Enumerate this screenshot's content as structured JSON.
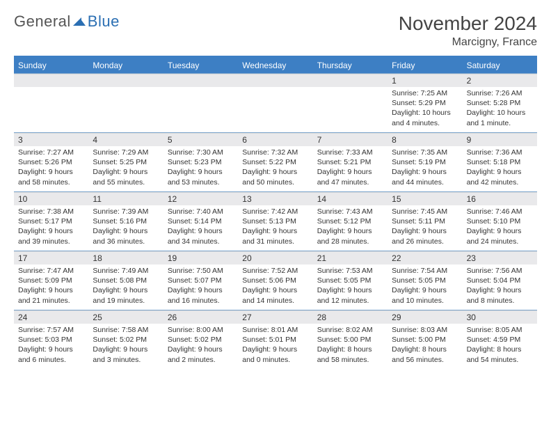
{
  "brand": {
    "part1": "General",
    "part2": "Blue"
  },
  "title": {
    "monthYear": "November 2024",
    "location": "Marcigny, France"
  },
  "colors": {
    "primary": "#3d7fc4",
    "rowBorder": "#7aa3cc",
    "dayStrip": "#e9e9eb",
    "text": "#333333"
  },
  "daysOfWeek": [
    "Sunday",
    "Monday",
    "Tuesday",
    "Wednesday",
    "Thursday",
    "Friday",
    "Saturday"
  ],
  "weeks": [
    [
      null,
      null,
      null,
      null,
      null,
      {
        "n": "1",
        "sr": "Sunrise: 7:25 AM",
        "ss": "Sunset: 5:29 PM",
        "dl": "Daylight: 10 hours and 4 minutes."
      },
      {
        "n": "2",
        "sr": "Sunrise: 7:26 AM",
        "ss": "Sunset: 5:28 PM",
        "dl": "Daylight: 10 hours and 1 minute."
      }
    ],
    [
      {
        "n": "3",
        "sr": "Sunrise: 7:27 AM",
        "ss": "Sunset: 5:26 PM",
        "dl": "Daylight: 9 hours and 58 minutes."
      },
      {
        "n": "4",
        "sr": "Sunrise: 7:29 AM",
        "ss": "Sunset: 5:25 PM",
        "dl": "Daylight: 9 hours and 55 minutes."
      },
      {
        "n": "5",
        "sr": "Sunrise: 7:30 AM",
        "ss": "Sunset: 5:23 PM",
        "dl": "Daylight: 9 hours and 53 minutes."
      },
      {
        "n": "6",
        "sr": "Sunrise: 7:32 AM",
        "ss": "Sunset: 5:22 PM",
        "dl": "Daylight: 9 hours and 50 minutes."
      },
      {
        "n": "7",
        "sr": "Sunrise: 7:33 AM",
        "ss": "Sunset: 5:21 PM",
        "dl": "Daylight: 9 hours and 47 minutes."
      },
      {
        "n": "8",
        "sr": "Sunrise: 7:35 AM",
        "ss": "Sunset: 5:19 PM",
        "dl": "Daylight: 9 hours and 44 minutes."
      },
      {
        "n": "9",
        "sr": "Sunrise: 7:36 AM",
        "ss": "Sunset: 5:18 PM",
        "dl": "Daylight: 9 hours and 42 minutes."
      }
    ],
    [
      {
        "n": "10",
        "sr": "Sunrise: 7:38 AM",
        "ss": "Sunset: 5:17 PM",
        "dl": "Daylight: 9 hours and 39 minutes."
      },
      {
        "n": "11",
        "sr": "Sunrise: 7:39 AM",
        "ss": "Sunset: 5:16 PM",
        "dl": "Daylight: 9 hours and 36 minutes."
      },
      {
        "n": "12",
        "sr": "Sunrise: 7:40 AM",
        "ss": "Sunset: 5:14 PM",
        "dl": "Daylight: 9 hours and 34 minutes."
      },
      {
        "n": "13",
        "sr": "Sunrise: 7:42 AM",
        "ss": "Sunset: 5:13 PM",
        "dl": "Daylight: 9 hours and 31 minutes."
      },
      {
        "n": "14",
        "sr": "Sunrise: 7:43 AM",
        "ss": "Sunset: 5:12 PM",
        "dl": "Daylight: 9 hours and 28 minutes."
      },
      {
        "n": "15",
        "sr": "Sunrise: 7:45 AM",
        "ss": "Sunset: 5:11 PM",
        "dl": "Daylight: 9 hours and 26 minutes."
      },
      {
        "n": "16",
        "sr": "Sunrise: 7:46 AM",
        "ss": "Sunset: 5:10 PM",
        "dl": "Daylight: 9 hours and 24 minutes."
      }
    ],
    [
      {
        "n": "17",
        "sr": "Sunrise: 7:47 AM",
        "ss": "Sunset: 5:09 PM",
        "dl": "Daylight: 9 hours and 21 minutes."
      },
      {
        "n": "18",
        "sr": "Sunrise: 7:49 AM",
        "ss": "Sunset: 5:08 PM",
        "dl": "Daylight: 9 hours and 19 minutes."
      },
      {
        "n": "19",
        "sr": "Sunrise: 7:50 AM",
        "ss": "Sunset: 5:07 PM",
        "dl": "Daylight: 9 hours and 16 minutes."
      },
      {
        "n": "20",
        "sr": "Sunrise: 7:52 AM",
        "ss": "Sunset: 5:06 PM",
        "dl": "Daylight: 9 hours and 14 minutes."
      },
      {
        "n": "21",
        "sr": "Sunrise: 7:53 AM",
        "ss": "Sunset: 5:05 PM",
        "dl": "Daylight: 9 hours and 12 minutes."
      },
      {
        "n": "22",
        "sr": "Sunrise: 7:54 AM",
        "ss": "Sunset: 5:05 PM",
        "dl": "Daylight: 9 hours and 10 minutes."
      },
      {
        "n": "23",
        "sr": "Sunrise: 7:56 AM",
        "ss": "Sunset: 5:04 PM",
        "dl": "Daylight: 9 hours and 8 minutes."
      }
    ],
    [
      {
        "n": "24",
        "sr": "Sunrise: 7:57 AM",
        "ss": "Sunset: 5:03 PM",
        "dl": "Daylight: 9 hours and 6 minutes."
      },
      {
        "n": "25",
        "sr": "Sunrise: 7:58 AM",
        "ss": "Sunset: 5:02 PM",
        "dl": "Daylight: 9 hours and 3 minutes."
      },
      {
        "n": "26",
        "sr": "Sunrise: 8:00 AM",
        "ss": "Sunset: 5:02 PM",
        "dl": "Daylight: 9 hours and 2 minutes."
      },
      {
        "n": "27",
        "sr": "Sunrise: 8:01 AM",
        "ss": "Sunset: 5:01 PM",
        "dl": "Daylight: 9 hours and 0 minutes."
      },
      {
        "n": "28",
        "sr": "Sunrise: 8:02 AM",
        "ss": "Sunset: 5:00 PM",
        "dl": "Daylight: 8 hours and 58 minutes."
      },
      {
        "n": "29",
        "sr": "Sunrise: 8:03 AM",
        "ss": "Sunset: 5:00 PM",
        "dl": "Daylight: 8 hours and 56 minutes."
      },
      {
        "n": "30",
        "sr": "Sunrise: 8:05 AM",
        "ss": "Sunset: 4:59 PM",
        "dl": "Daylight: 8 hours and 54 minutes."
      }
    ]
  ]
}
